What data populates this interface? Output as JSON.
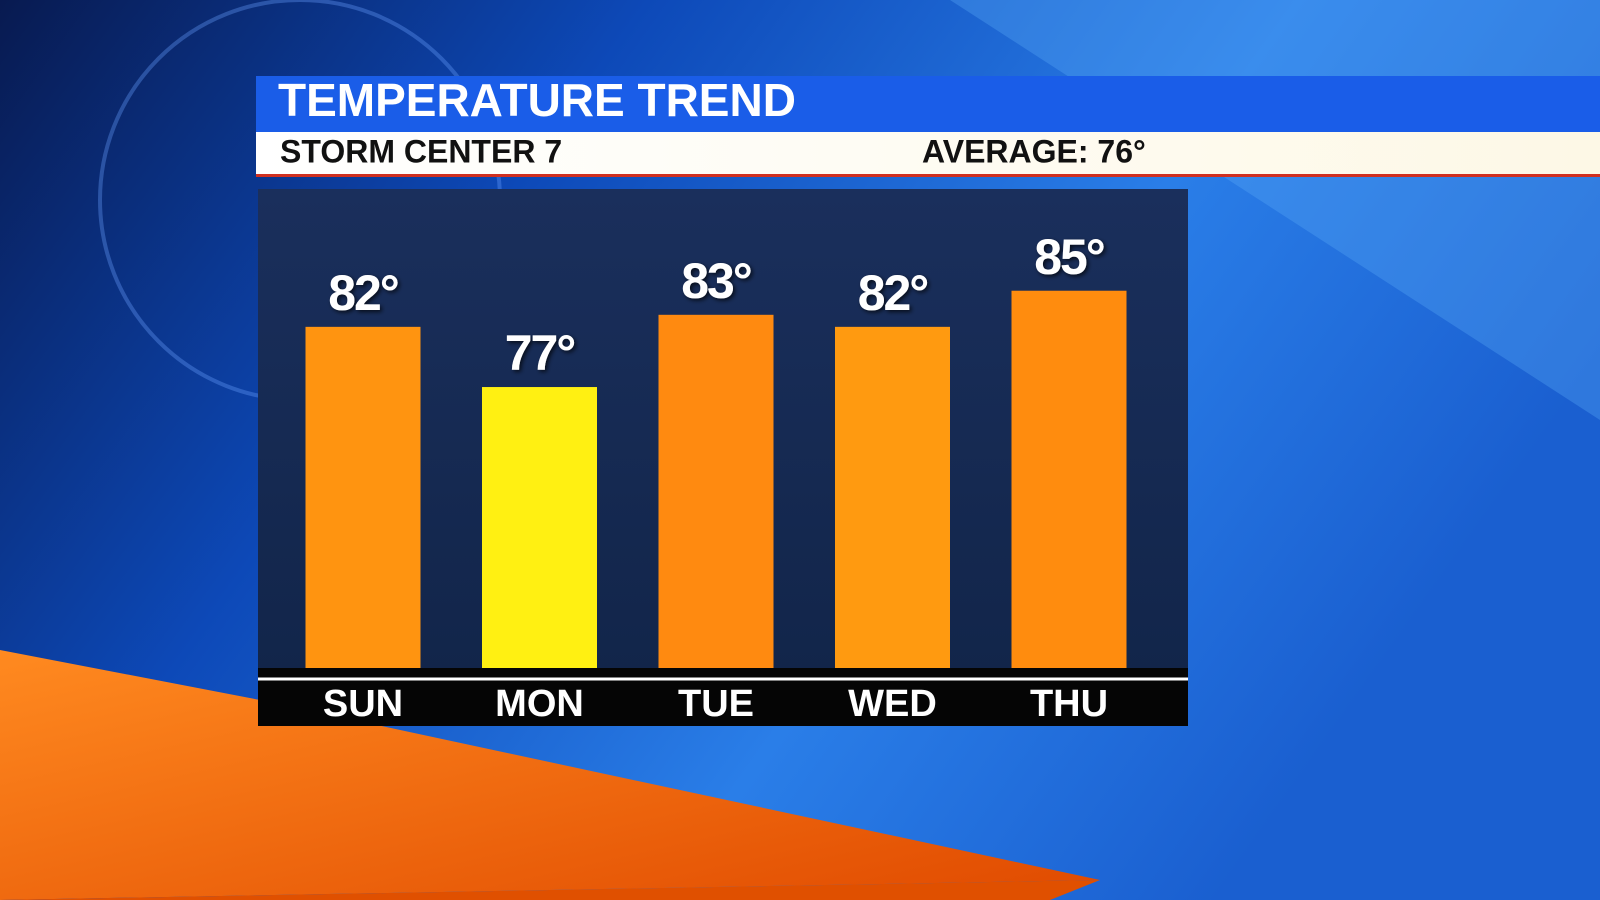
{
  "chart_data": {
    "type": "bar",
    "title": "TEMPERATURE TREND",
    "subtitle": "STORM CENTER 7",
    "annotation": "AVERAGE: 76°",
    "categories": [
      "SUN",
      "MON",
      "TUE",
      "WED",
      "THU"
    ],
    "values": [
      82,
      77,
      83,
      82,
      85
    ],
    "value_labels": [
      "82°",
      "77°",
      "83°",
      "82°",
      "85°"
    ],
    "colors": [
      "#ff9410",
      "#fff012",
      "#ff8a10",
      "#ff9a10",
      "#ff8c0e"
    ],
    "ylim": [
      53,
      87
    ]
  }
}
